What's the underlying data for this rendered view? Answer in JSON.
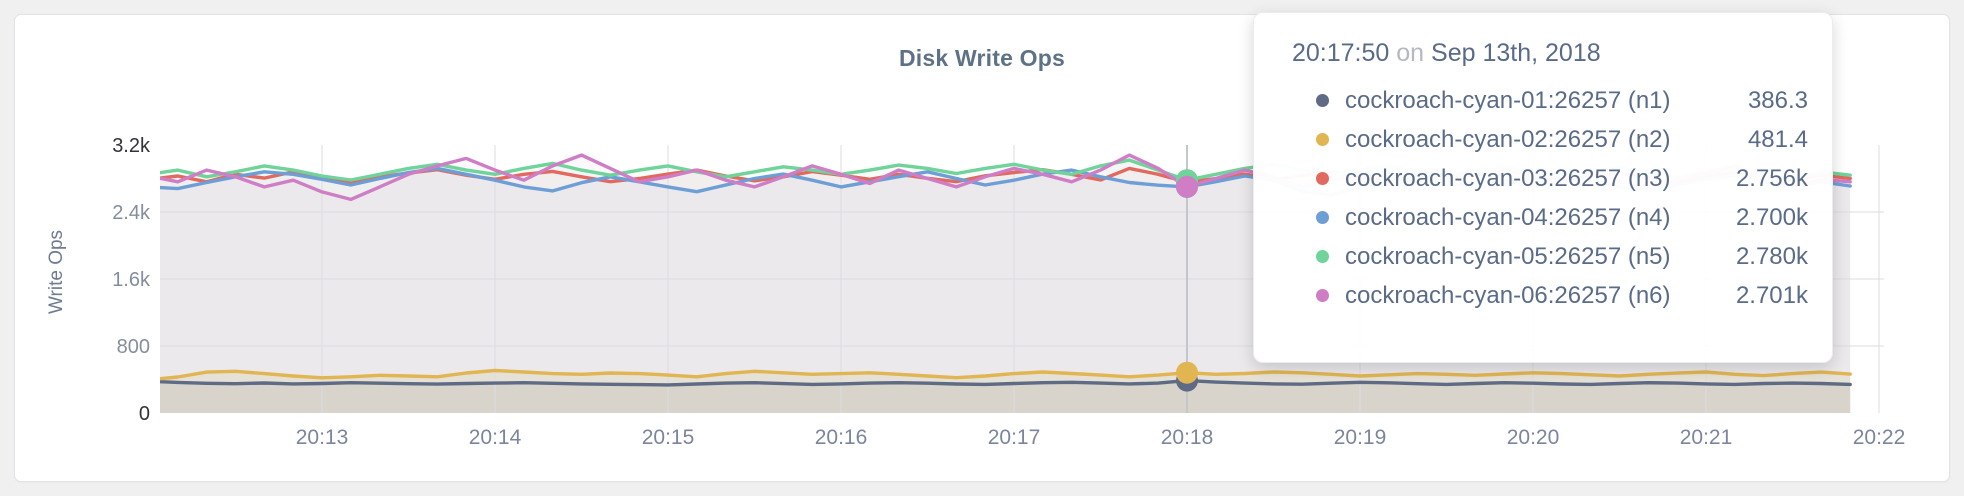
{
  "chart": {
    "title": "Disk Write Ops",
    "ylabel": "Write Ops"
  },
  "colors": {
    "page_background": "#f0f0f1",
    "card_background": "#ffffff",
    "grid": "#dcdce1",
    "hover_line": "#c3c6ca",
    "title_text": "#5e7287",
    "axis_text": "#7b869c",
    "axis_text_strong": "#303338",
    "tooltip_text": "#5a6b87"
  },
  "tooltip": {
    "time": "20:17:50",
    "on_word": "on",
    "date": "Sep 13th, 2018",
    "highlight_index": 36,
    "rows": [
      {
        "label": "cockroach-cyan-01:26257 (n1)",
        "value": "386.3",
        "color": "#5f6a84"
      },
      {
        "label": "cockroach-cyan-02:26257 (n2)",
        "value": "481.4",
        "color": "#e0b552"
      },
      {
        "label": "cockroach-cyan-03:26257 (n3)",
        "value": "2.756k",
        "color": "#e2695f"
      },
      {
        "label": "cockroach-cyan-04:26257 (n4)",
        "value": "2.700k",
        "color": "#6d9ed6"
      },
      {
        "label": "cockroach-cyan-05:26257 (n5)",
        "value": "2.780k",
        "color": "#6fd39a"
      },
      {
        "label": "cockroach-cyan-06:26257 (n6)",
        "value": "2.701k",
        "color": "#cf7ec6"
      }
    ]
  },
  "chart_data": {
    "type": "line",
    "title": "Disk Write Ops",
    "xlabel": "",
    "ylabel": "Write Ops",
    "ylim": [
      0,
      3200
    ],
    "grid": true,
    "legend_position": "tooltip",
    "x_ticks": [
      "20:13",
      "20:14",
      "20:15",
      "20:16",
      "20:17",
      "20:18",
      "20:19",
      "20:20",
      "20:21",
      "20:22"
    ],
    "x_sample_interval_sec": 10,
    "y_ticks": [
      {
        "label": "3.2k",
        "value": 3200,
        "strong": true
      },
      {
        "label": "2.4k",
        "value": 2400,
        "strong": false
      },
      {
        "label": "1.6k",
        "value": 1600,
        "strong": false
      },
      {
        "label": "800",
        "value": 800,
        "strong": false
      },
      {
        "label": "0",
        "value": 0,
        "strong": true
      }
    ],
    "series": [
      {
        "name": "cockroach-cyan-01:26257 (n1)",
        "color": "#5f6a84",
        "values": [
          378,
          365,
          355,
          350,
          358,
          348,
          352,
          362,
          356,
          350,
          345,
          352,
          357,
          362,
          355,
          348,
          343,
          339,
          336,
          346,
          357,
          362,
          351,
          341,
          347,
          357,
          362,
          356,
          346,
          341,
          352,
          362,
          367,
          357,
          347,
          357,
          386.3,
          369,
          357,
          348,
          344,
          356,
          366,
          361,
          350,
          341,
          352,
          362,
          356,
          346,
          341,
          352,
          362,
          357,
          347,
          342,
          352,
          357,
          352,
          342
        ]
      },
      {
        "name": "cockroach-cyan-02:26257 (n2)",
        "color": "#e0b552",
        "values": [
          398,
          430,
          488,
          498,
          470,
          442,
          420,
          432,
          450,
          442,
          432,
          478,
          508,
          490,
          470,
          462,
          478,
          470,
          452,
          432,
          470,
          498,
          480,
          462,
          470,
          480,
          462,
          442,
          422,
          442,
          470,
          490,
          472,
          452,
          432,
          452,
          481.4,
          462,
          472,
          490,
          480,
          462,
          442,
          456,
          470,
          462,
          450,
          466,
          480,
          470,
          456,
          442,
          462,
          476,
          490,
          462,
          446,
          470,
          488,
          464
        ]
      },
      {
        "name": "cockroach-cyan-03:26257 (n3)",
        "color": "#e2695f",
        "values": [
          2790,
          2830,
          2760,
          2850,
          2805,
          2880,
          2795,
          2750,
          2820,
          2865,
          2905,
          2840,
          2790,
          2850,
          2885,
          2820,
          2762,
          2800,
          2852,
          2900,
          2830,
          2772,
          2820,
          2882,
          2840,
          2790,
          2850,
          2802,
          2762,
          2832,
          2872,
          2905,
          2850,
          2782,
          2920,
          2850,
          2756,
          2800,
          2852,
          2790,
          2832,
          2880,
          2820,
          2772,
          2850,
          2802,
          2840,
          2890,
          2830,
          2780,
          2822,
          2862,
          2800,
          2752,
          2830,
          2870,
          2820,
          2780,
          2840,
          2800
        ]
      },
      {
        "name": "cockroach-cyan-04:26257 (n4)",
        "color": "#6d9ed6",
        "values": [
          2700,
          2680,
          2752,
          2820,
          2880,
          2850,
          2790,
          2722,
          2800,
          2870,
          2920,
          2850,
          2780,
          2700,
          2652,
          2750,
          2820,
          2760,
          2700,
          2642,
          2722,
          2800,
          2852,
          2780,
          2700,
          2760,
          2822,
          2880,
          2800,
          2722,
          2780,
          2852,
          2900,
          2820,
          2752,
          2720,
          2700,
          2762,
          2830,
          2780,
          2650,
          2602,
          2700,
          2780,
          2840,
          2760,
          2692,
          2740,
          2800,
          2850,
          2780,
          2700,
          2652,
          2722,
          2790,
          2840,
          2770,
          2700,
          2760,
          2710
        ]
      },
      {
        "name": "cockroach-cyan-05:26257 (n5)",
        "color": "#6fd39a",
        "values": [
          2850,
          2900,
          2820,
          2880,
          2950,
          2900,
          2830,
          2782,
          2850,
          2920,
          2970,
          2900,
          2850,
          2920,
          2980,
          2900,
          2840,
          2900,
          2950,
          2880,
          2820,
          2880,
          2940,
          2900,
          2850,
          2900,
          2960,
          2920,
          2860,
          2920,
          2970,
          2900,
          2850,
          2950,
          3020,
          2900,
          2780,
          2850,
          2920,
          2970,
          2900,
          2840,
          2900,
          2950,
          2880,
          2830,
          2890,
          2940,
          2870,
          2820,
          2880,
          2930,
          2860,
          2810,
          2870,
          2920,
          2850,
          2800,
          2880,
          2840
        ]
      },
      {
        "name": "cockroach-cyan-06:26257 (n6)",
        "color": "#cf7ec6",
        "values": [
          2830,
          2760,
          2900,
          2820,
          2700,
          2780,
          2640,
          2550,
          2700,
          2850,
          2950,
          3040,
          2900,
          2780,
          2950,
          3080,
          2920,
          2760,
          2820,
          2900,
          2780,
          2700,
          2820,
          2950,
          2850,
          2740,
          2900,
          2800,
          2700,
          2820,
          2920,
          2850,
          2760,
          2900,
          3080,
          2920,
          2701,
          2800,
          2900,
          2820,
          2700,
          2760,
          2880,
          2800,
          2720,
          2820,
          2900,
          2780,
          2700,
          2800,
          2880,
          2760,
          2680,
          2780,
          2870,
          2950,
          2820,
          2700,
          2790,
          2760
        ]
      }
    ]
  }
}
